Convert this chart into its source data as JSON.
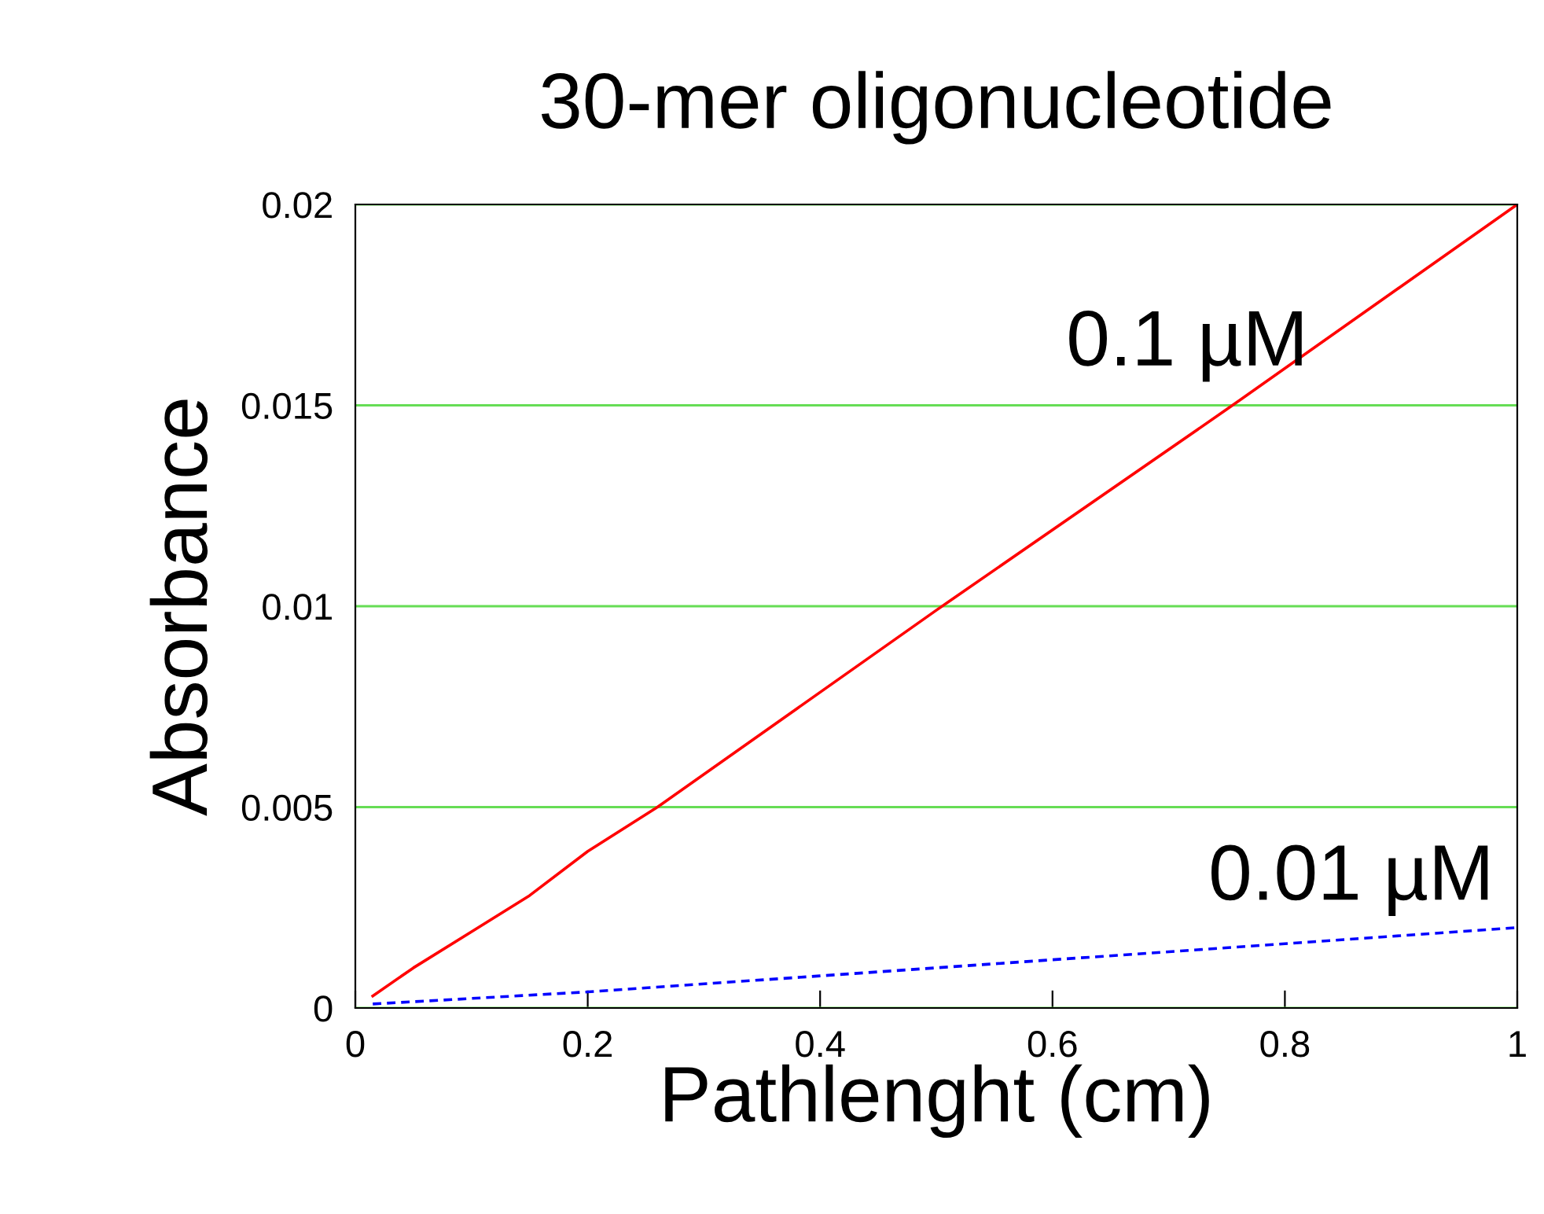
{
  "chart_data": {
    "type": "line",
    "title": "30-mer oligonucleotide",
    "xlabel": "Pathlenght (cm)",
    "ylabel": "Absorbance",
    "xlim": [
      0,
      1
    ],
    "ylim": [
      0,
      0.02
    ],
    "xticks": [
      0,
      0.2,
      0.4,
      0.6,
      0.8,
      1
    ],
    "yticks": [
      0,
      0.005,
      0.01,
      0.015,
      0.02
    ],
    "grid": "y",
    "legend": false,
    "series": [
      {
        "name": "0.1 µM",
        "color": "#ff0000",
        "line_style": "solid",
        "x": [
          0.015,
          0.05,
          0.1,
          0.15,
          0.2,
          0.26,
          0.5,
          0.75,
          1
        ],
        "values": [
          0.0003,
          0.001,
          0.0019,
          0.0028,
          0.0039,
          0.005,
          0.0099,
          0.0149,
          0.02
        ]
      },
      {
        "name": "0.01 µM",
        "color": "#0000ff",
        "line_style": "dashed",
        "x": [
          0.015,
          0.2,
          0.4,
          0.6,
          0.8,
          1
        ],
        "values": [
          0.0001,
          0.0004,
          0.0008,
          0.0012,
          0.0016,
          0.002
        ]
      }
    ]
  }
}
